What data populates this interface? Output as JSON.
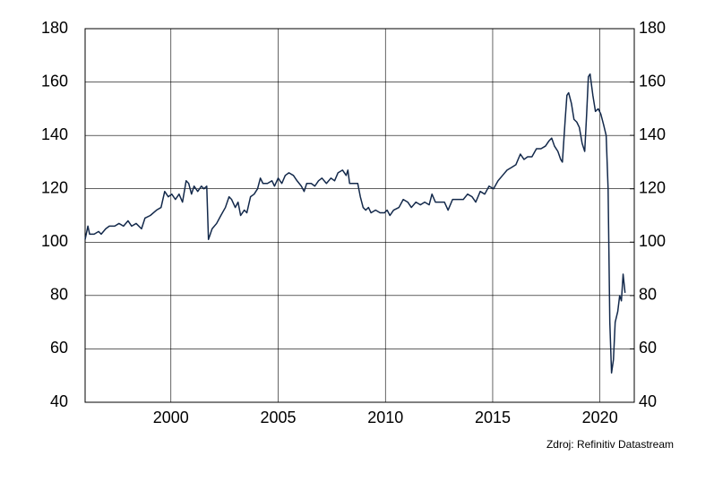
{
  "chart_data": {
    "type": "line",
    "source": "Zdroj: Refinitiv Datastream",
    "xlim": [
      1996,
      2021.6
    ],
    "xticks": [
      2000,
      2005,
      2010,
      2015,
      2020
    ],
    "ylim": [
      40,
      180
    ],
    "yticks": [
      40,
      60,
      80,
      100,
      120,
      140,
      160,
      180
    ],
    "y2lim": [
      40,
      180
    ],
    "y2ticks": [
      40,
      60,
      80,
      100,
      120,
      140,
      160,
      180
    ],
    "grid": true,
    "color": "#13294b",
    "x": [
      1996.0,
      1996.13,
      1996.21,
      1996.42,
      1996.63,
      1996.75,
      1996.96,
      1997.13,
      1997.38,
      1997.58,
      1997.79,
      1998.0,
      1998.17,
      1998.38,
      1998.63,
      1998.79,
      1999.04,
      1999.33,
      1999.54,
      1999.71,
      1999.88,
      2000.04,
      2000.21,
      2000.38,
      2000.54,
      2000.71,
      2000.83,
      2000.96,
      2001.08,
      2001.25,
      2001.42,
      2001.54,
      2001.67,
      2001.75,
      2001.92,
      2002.13,
      2002.33,
      2002.54,
      2002.71,
      2002.83,
      2003.0,
      2003.13,
      2003.25,
      2003.42,
      2003.54,
      2003.71,
      2003.88,
      2004.04,
      2004.17,
      2004.29,
      2004.5,
      2004.71,
      2004.83,
      2005.0,
      2005.17,
      2005.33,
      2005.5,
      2005.71,
      2005.88,
      2006.08,
      2006.21,
      2006.33,
      2006.54,
      2006.71,
      2006.88,
      2007.04,
      2007.25,
      2007.46,
      2007.63,
      2007.79,
      2008.0,
      2008.17,
      2008.25,
      2008.33,
      2008.71,
      2008.83,
      2008.96,
      2009.08,
      2009.21,
      2009.33,
      2009.54,
      2009.75,
      2009.96,
      2010.08,
      2010.21,
      2010.38,
      2010.63,
      2010.83,
      2011.04,
      2011.21,
      2011.42,
      2011.63,
      2011.83,
      2012.04,
      2012.17,
      2012.33,
      2012.54,
      2012.75,
      2012.92,
      2013.13,
      2013.38,
      2013.63,
      2013.83,
      2014.04,
      2014.21,
      2014.42,
      2014.63,
      2014.83,
      2015.04,
      2015.25,
      2015.46,
      2015.67,
      2015.88,
      2016.08,
      2016.29,
      2016.46,
      2016.63,
      2016.83,
      2017.04,
      2017.25,
      2017.46,
      2017.63,
      2017.75,
      2017.88,
      2018.04,
      2018.17,
      2018.25,
      2018.38,
      2018.46,
      2018.54,
      2018.67,
      2018.79,
      2018.92,
      2019.04,
      2019.17,
      2019.29,
      2019.38,
      2019.46,
      2019.54,
      2019.67,
      2019.79,
      2019.92,
      2020.04,
      2020.17,
      2020.29,
      2020.38,
      2020.46,
      2020.54,
      2020.63,
      2020.71,
      2020.83,
      2020.92,
      2021.0,
      2021.08,
      2021.17
    ],
    "values": [
      101,
      106,
      103,
      103,
      104,
      103,
      105,
      106,
      106,
      107,
      106,
      108,
      106,
      107,
      105,
      109,
      110,
      112,
      113,
      119,
      117,
      118,
      116,
      118,
      115,
      123,
      122,
      118,
      121,
      119,
      121,
      120,
      121,
      101,
      105,
      107,
      110,
      113,
      117,
      116,
      113,
      115,
      110,
      112,
      111,
      117,
      118,
      120,
      124,
      122,
      122,
      123,
      121,
      124,
      122,
      125,
      126,
      125,
      123,
      121,
      119,
      122,
      122,
      121,
      123,
      124,
      122,
      124,
      123,
      126,
      127,
      125,
      127,
      122,
      122,
      117,
      113,
      112,
      113,
      111,
      112,
      111,
      111,
      112,
      110,
      112,
      113,
      116,
      115,
      113,
      115,
      114,
      115,
      114,
      118,
      115,
      115,
      115,
      112,
      116,
      116,
      116,
      118,
      117,
      115,
      119,
      118,
      121,
      120,
      123,
      125,
      127,
      128,
      129,
      133,
      131,
      132,
      132,
      135,
      135,
      136,
      138,
      139,
      136,
      134,
      131,
      130,
      146,
      155,
      156,
      152,
      146,
      145,
      143,
      137,
      134,
      148,
      162,
      163,
      155,
      149,
      150,
      148,
      144,
      140,
      120,
      70,
      51,
      56,
      70,
      74,
      80,
      78,
      88,
      81
    ]
  }
}
